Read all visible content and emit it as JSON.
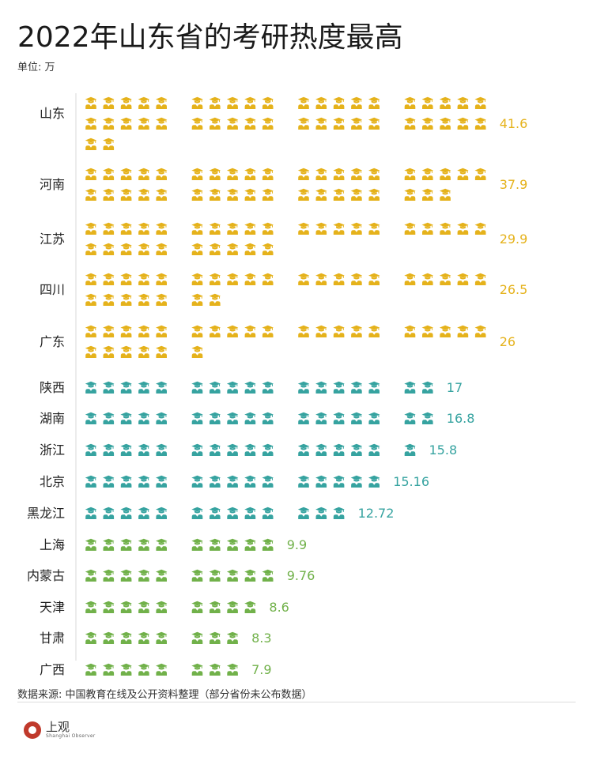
{
  "title": "2022年山东省的考研热度最高",
  "unit": "单位: 万",
  "source": "数据来源: 中国教育在线及公开资料整理（部分省份未公布数据）",
  "logo": {
    "name": "上观",
    "sub": "Shanghai Observer"
  },
  "colors": {
    "tier1": "#e5b21b",
    "tier2": "#36a3a0",
    "tier3": "#71b14a",
    "axis": "#d8d8d8"
  },
  "icon": "graduate-icon",
  "chart_data": {
    "type": "pictograph",
    "unit_per_icon": 1,
    "categories": [
      "山东",
      "河南",
      "江苏",
      "四川",
      "广东",
      "陕西",
      "湖南",
      "浙江",
      "北京",
      "黑龙江",
      "上海",
      "内蒙古",
      "天津",
      "甘肃",
      "广西"
    ],
    "values": [
      41.6,
      37.9,
      29.9,
      26.5,
      26,
      17,
      16.8,
      15.8,
      15.16,
      12.72,
      9.9,
      9.76,
      8.6,
      8.3,
      7.9
    ],
    "labels": [
      "41.6",
      "37.9",
      "29.9",
      "26.5",
      "26",
      "17",
      "16.8",
      "15.8",
      "15.16",
      "12.72",
      "9.9",
      "9.76",
      "8.6",
      "8.3",
      "7.9"
    ],
    "icon_counts": [
      42,
      38,
      30,
      27,
      26,
      17,
      17,
      16,
      15,
      13,
      10,
      10,
      9,
      8,
      8
    ],
    "tiers": [
      "tier1",
      "tier1",
      "tier1",
      "tier1",
      "tier1",
      "tier2",
      "tier2",
      "tier2",
      "tier2",
      "tier2",
      "tier3",
      "tier3",
      "tier3",
      "tier3",
      "tier3"
    ]
  }
}
